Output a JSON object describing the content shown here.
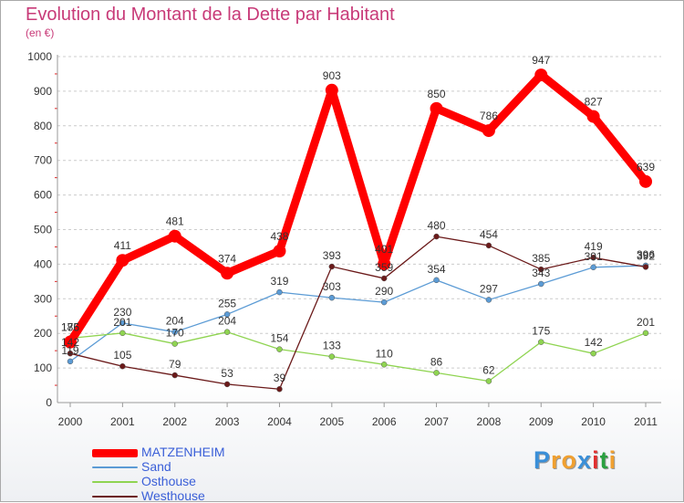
{
  "title": "Evolution du Montant de la Dette par Habitant",
  "subtitle": "(en €)",
  "brand": {
    "text": "Proxiti",
    "colors": [
      "#3a8fd8",
      "#f0a030",
      "#f0a030",
      "#3a8fd8",
      "#e03030",
      "#2aa040",
      "#f0a030"
    ]
  },
  "chart_data": {
    "type": "line",
    "x": [
      "2000",
      "2001",
      "2002",
      "2003",
      "2004",
      "2005",
      "2006",
      "2007",
      "2008",
      "2009",
      "2010",
      "2011"
    ],
    "ylim": [
      0,
      1000
    ],
    "yticks": [
      0,
      100,
      200,
      300,
      400,
      500,
      600,
      700,
      800,
      900,
      1000
    ],
    "grid": "horizontal-dashed",
    "legend_placement": "bottom-left",
    "series": [
      {
        "name": "MATZENHEIM",
        "color": "#ff0000",
        "values": [
          175,
          411,
          481,
          374,
          438,
          903,
          401,
          850,
          786,
          947,
          827,
          639
        ]
      },
      {
        "name": "Sand",
        "color": "#5b9bd5",
        "values": [
          119,
          230,
          204,
          255,
          319,
          303,
          290,
          354,
          297,
          343,
          391,
          396
        ]
      },
      {
        "name": "Osthouse",
        "color": "#8fd451",
        "values": [
          186,
          201,
          170,
          204,
          154,
          133,
          110,
          86,
          62,
          175,
          142,
          201
        ]
      },
      {
        "name": "Westhouse",
        "color": "#6b1a1a",
        "values": [
          142,
          105,
          79,
          53,
          39,
          393,
          359,
          480,
          454,
          385,
          419,
          392
        ]
      }
    ],
    "labels": [
      {
        "text": "411",
        "series": 0,
        "i": 1
      },
      {
        "text": "481",
        "series": 0,
        "i": 2
      },
      {
        "text": "374",
        "series": 0,
        "i": 3
      },
      {
        "text": "438",
        "series": 0,
        "i": 4
      },
      {
        "text": "903",
        "series": 0,
        "i": 5
      },
      {
        "text": "401",
        "series": 0,
        "i": 6
      },
      {
        "text": "850",
        "series": 0,
        "i": 7
      },
      {
        "text": "786",
        "series": 0,
        "i": 8
      },
      {
        "text": "947",
        "series": 0,
        "i": 9
      },
      {
        "text": "827",
        "series": 0,
        "i": 10
      },
      {
        "text": "639",
        "series": 0,
        "i": 11
      },
      {
        "text": "175",
        "series": 0,
        "i": 0
      },
      {
        "text": "186",
        "series": 2,
        "i": 0
      },
      {
        "text": "119",
        "series": 1,
        "i": 0
      },
      {
        "text": "142",
        "series": 3,
        "i": 0
      },
      {
        "text": "230",
        "series": 1,
        "i": 1
      },
      {
        "text": "201",
        "series": 2,
        "i": 1
      },
      {
        "text": "204",
        "series": 1,
        "i": 2
      },
      {
        "text": "170",
        "series": 2,
        "i": 2
      },
      {
        "text": "255",
        "series": 1,
        "i": 3
      },
      {
        "text": "204",
        "series": 2,
        "i": 3
      },
      {
        "text": "319",
        "series": 1,
        "i": 4
      },
      {
        "text": "154",
        "series": 2,
        "i": 4
      },
      {
        "text": "303",
        "series": 1,
        "i": 5
      },
      {
        "text": "133",
        "series": 2,
        "i": 5
      },
      {
        "text": "290",
        "series": 1,
        "i": 6
      },
      {
        "text": "110",
        "series": 2,
        "i": 6
      },
      {
        "text": "354",
        "series": 1,
        "i": 7
      },
      {
        "text": "86",
        "series": 2,
        "i": 7
      },
      {
        "text": "297",
        "series": 1,
        "i": 8
      },
      {
        "text": "62",
        "series": 2,
        "i": 8
      },
      {
        "text": "343",
        "series": 1,
        "i": 9
      },
      {
        "text": "175",
        "series": 2,
        "i": 9
      },
      {
        "text": "391",
        "series": 1,
        "i": 10
      },
      {
        "text": "142",
        "series": 2,
        "i": 10
      },
      {
        "text": "396",
        "series": 1,
        "i": 11
      },
      {
        "text": "201",
        "series": 2,
        "i": 11
      },
      {
        "text": "105",
        "series": 3,
        "i": 1
      },
      {
        "text": "79",
        "series": 3,
        "i": 2
      },
      {
        "text": "53",
        "series": 3,
        "i": 3
      },
      {
        "text": "39",
        "series": 3,
        "i": 4
      },
      {
        "text": "393",
        "series": 3,
        "i": 5
      },
      {
        "text": "359",
        "series": 3,
        "i": 6
      },
      {
        "text": "480",
        "series": 3,
        "i": 7
      },
      {
        "text": "454",
        "series": 3,
        "i": 8
      },
      {
        "text": "385",
        "series": 3,
        "i": 9
      },
      {
        "text": "419",
        "series": 3,
        "i": 10
      },
      {
        "text": "392",
        "series": 3,
        "i": 11
      }
    ]
  }
}
